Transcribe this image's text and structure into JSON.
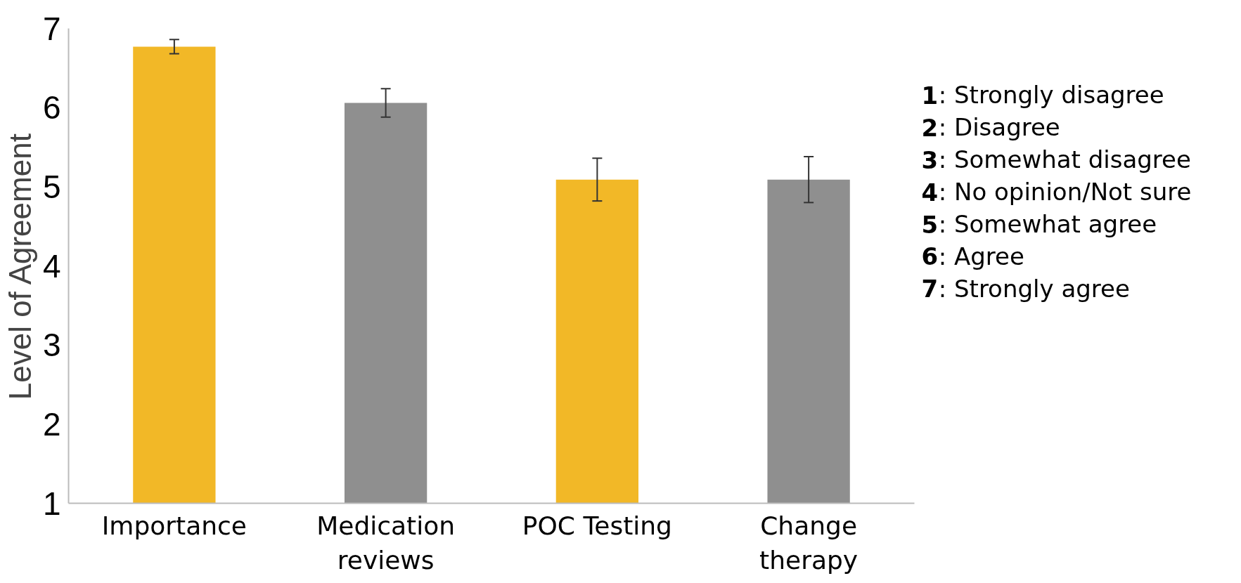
{
  "chart_data": {
    "type": "bar",
    "ylabel": "Level of Agreement",
    "categories": [
      "Importance",
      "Medication reviews",
      "POC Testing",
      "Change therapy"
    ],
    "values": [
      6.77,
      6.06,
      5.09,
      5.09
    ],
    "errors": [
      0.09,
      0.18,
      0.27,
      0.29
    ],
    "colors": [
      "#f2b827",
      "#8f8f8f",
      "#f2b827",
      "#8f8f8f"
    ],
    "ylim": [
      1,
      7
    ],
    "yticks": [
      1,
      2,
      3,
      4,
      5,
      6,
      7
    ],
    "grid": false,
    "annotations": [
      "1: Strongly disagree",
      "2: Disagree",
      "3: Somewhat disagree",
      "4: No opinion/Not sure",
      "5: Somewhat agree",
      "6: Agree",
      "7: Strongly agree"
    ]
  }
}
